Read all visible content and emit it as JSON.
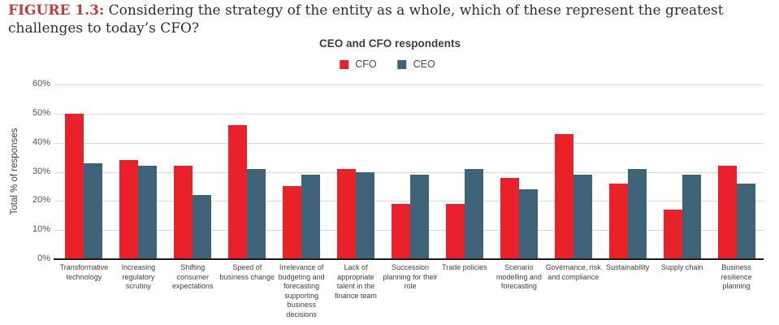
{
  "figure": {
    "label": "FIGURE 1.3:",
    "title": "Considering the strategy of the entity as a whole, which of these represent the greatest challenges to today’s CFO?"
  },
  "colors": {
    "cfo_red": "#e8212a",
    "ceo_blue": "#3e6378",
    "gridline": "#d8d8d8",
    "figure_label_red": "#c13b42"
  },
  "chart_data": {
    "type": "bar",
    "title": "CEO and CFO respondents",
    "xlabel": "",
    "ylabel": "Total % of responses",
    "ylim": [
      0,
      60
    ],
    "ytick_step": 10,
    "ytick_suffix": "%",
    "grid": true,
    "legend_position": "top",
    "categories": [
      "Transformative technology",
      "Increasing regulatory scrutiny",
      "Shifting consumer expectations",
      "Speed of business change",
      "Irrelevance of budgeting and forecasting supporting business decisions",
      "Lack of appropriate talent in the finance team",
      "Succession planning for their role",
      "Trade policies",
      "Scenario modelling and forecasting",
      "Governance, risk and compliance",
      "Sustainability",
      "Supply chain",
      "Business resilience planning"
    ],
    "series": [
      {
        "name": "CFO",
        "color": "#e8212a",
        "values": [
          50,
          34,
          32,
          46,
          25,
          31,
          19,
          19,
          28,
          43,
          26,
          17,
          32
        ]
      },
      {
        "name": "CEO",
        "color": "#3e6378",
        "values": [
          33,
          32,
          22,
          31,
          29,
          30,
          29,
          31,
          24,
          29,
          31,
          29,
          26
        ]
      }
    ]
  }
}
